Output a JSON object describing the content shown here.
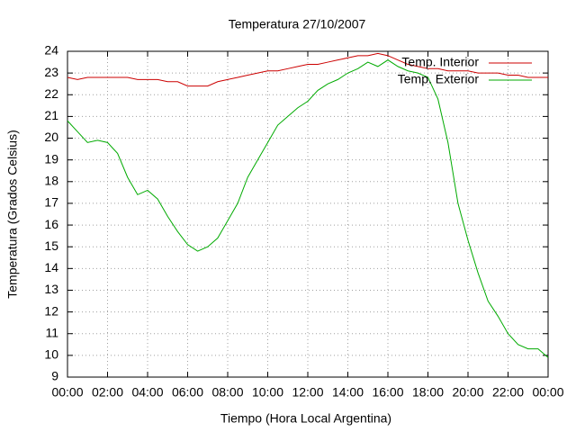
{
  "chart_data": {
    "type": "line",
    "title": "Temperatura 27/10/2007",
    "x_label": "Tiempo (Hora Local Argentina)",
    "y_label": "Temperatura (Grados Celsius)",
    "x": [
      0,
      0.5,
      1,
      1.5,
      2,
      2.5,
      3,
      3.5,
      4,
      4.5,
      5,
      5.5,
      6,
      6.5,
      7,
      7.5,
      8,
      8.5,
      9,
      9.5,
      10,
      10.5,
      11,
      11.5,
      12,
      12.5,
      13,
      13.5,
      14,
      14.5,
      15,
      15.5,
      16,
      16.5,
      17,
      17.5,
      18,
      18.5,
      19,
      19.5,
      20,
      20.5,
      21,
      21.5,
      22,
      22.5,
      23,
      23.5,
      24
    ],
    "series": [
      {
        "name": "Temp. Interior",
        "color": "#cc0000",
        "values": [
          22.8,
          22.7,
          22.8,
          22.8,
          22.8,
          22.8,
          22.8,
          22.7,
          22.7,
          22.7,
          22.6,
          22.6,
          22.4,
          22.4,
          22.4,
          22.6,
          22.7,
          22.8,
          22.9,
          23.0,
          23.1,
          23.1,
          23.2,
          23.3,
          23.4,
          23.4,
          23.5,
          23.6,
          23.7,
          23.8,
          23.8,
          23.9,
          23.8,
          23.6,
          23.4,
          23.3,
          23.2,
          23.2,
          23.1,
          23.1,
          23.1,
          23.0,
          23.0,
          23.0,
          22.9,
          22.9,
          22.8,
          22.8,
          22.8
        ]
      },
      {
        "name": "Temp. Exterior",
        "color": "#00aa00",
        "values": [
          20.8,
          20.3,
          19.8,
          19.9,
          19.8,
          19.3,
          18.2,
          17.4,
          17.6,
          17.2,
          16.4,
          15.7,
          15.1,
          14.8,
          15.0,
          15.4,
          16.2,
          17.0,
          18.2,
          19.0,
          19.8,
          20.6,
          21.0,
          21.4,
          21.7,
          22.2,
          22.5,
          22.7,
          23.0,
          23.2,
          23.5,
          23.3,
          23.6,
          23.3,
          23.1,
          23.0,
          22.8,
          21.8,
          19.8,
          17.0,
          15.3,
          13.8,
          12.5,
          11.8,
          11.0,
          10.5,
          10.3,
          10.3,
          9.9
        ]
      }
    ],
    "xlim": [
      0,
      24
    ],
    "xticks": [
      {
        "value": 0,
        "label": "00:00"
      },
      {
        "value": 2,
        "label": "02:00"
      },
      {
        "value": 4,
        "label": "04:00"
      },
      {
        "value": 6,
        "label": "06:00"
      },
      {
        "value": 8,
        "label": "08:00"
      },
      {
        "value": 10,
        "label": "10:00"
      },
      {
        "value": 12,
        "label": "12:00"
      },
      {
        "value": 14,
        "label": "14:00"
      },
      {
        "value": 16,
        "label": "16:00"
      },
      {
        "value": 18,
        "label": "18:00"
      },
      {
        "value": 20,
        "label": "20:00"
      },
      {
        "value": 22,
        "label": "22:00"
      },
      {
        "value": 24,
        "label": "00:00"
      }
    ],
    "ylim": [
      9,
      24
    ],
    "yticks": [
      9,
      10,
      11,
      12,
      13,
      14,
      15,
      16,
      17,
      18,
      19,
      20,
      21,
      22,
      23,
      24
    ],
    "grid": true,
    "legend": "top-right"
  }
}
